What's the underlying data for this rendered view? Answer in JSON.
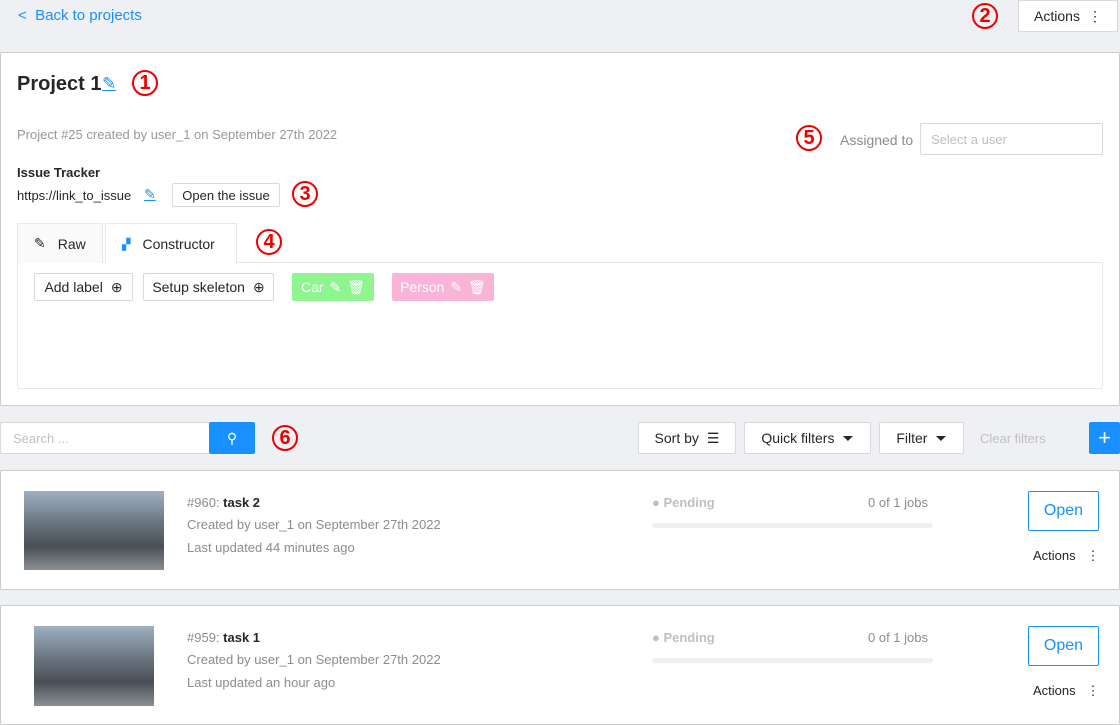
{
  "header": {
    "back_label": "Back to projects",
    "actions_label": "Actions"
  },
  "project": {
    "title": "Project 1",
    "meta": "Project #25 created by user_1 on September 27th 2022",
    "assigned_label": "Assigned to",
    "assignee_placeholder": "Select a user",
    "issue_tracker_label": "Issue Tracker",
    "issue_url": "https://link_to_issue",
    "open_issue_label": "Open the issue",
    "tabs": [
      {
        "label": "Raw",
        "active": false
      },
      {
        "label": "Constructor",
        "active": true
      }
    ],
    "add_label": "Add label",
    "setup_skeleton": "Setup skeleton",
    "labels": [
      {
        "name": "Car",
        "color": "#8ff58f"
      },
      {
        "name": "Person",
        "color": "#fab4d7"
      }
    ]
  },
  "toolbar": {
    "search_placeholder": "Search ...",
    "sort_by": "Sort by",
    "quick_filters": "Quick filters",
    "filter": "Filter",
    "clear_filters": "Clear filters"
  },
  "tasks": [
    {
      "id": "#960:",
      "name": "task 2",
      "created": "Created by user_1 on September 27th 2022",
      "updated": "Last updated 44 minutes ago",
      "status": "Pending",
      "jobs": "0 of 1 jobs",
      "progress": 0,
      "open": "Open",
      "actions": "Actions"
    },
    {
      "id": "#959:",
      "name": "task 1",
      "created": "Created by user_1 on September 27th 2022",
      "updated": "Last updated an hour ago",
      "status": "Pending",
      "jobs": "0 of 1 jobs",
      "progress": 0,
      "open": "Open",
      "actions": "Actions"
    }
  ],
  "annotations": [
    "1",
    "2",
    "3",
    "4",
    "5",
    "6"
  ],
  "colors": {
    "accent": "#1890ff",
    "annotation": "#e00000"
  }
}
